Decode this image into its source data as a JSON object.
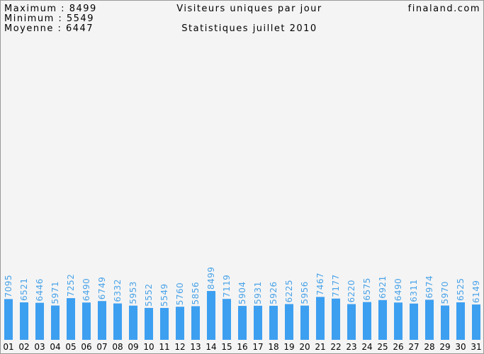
{
  "chart_data": {
    "type": "bar",
    "stats": [
      "Maximum : 8499",
      "Minimum : 5549",
      "Moyenne : 6447"
    ],
    "title": "Visiteurs uniques par jour",
    "subtitle": "Statistiques juillet 2010",
    "site": "finaland.com",
    "color": "#3d9ff0",
    "categories": [
      "01",
      "02",
      "03",
      "04",
      "05",
      "06",
      "07",
      "08",
      "09",
      "10",
      "11",
      "12",
      "13",
      "14",
      "15",
      "16",
      "17",
      "18",
      "19",
      "20",
      "21",
      "22",
      "23",
      "24",
      "25",
      "26",
      "27",
      "28",
      "29",
      "30",
      "31"
    ],
    "values": [
      7095,
      6521,
      6446,
      5971,
      7252,
      6490,
      6749,
      6332,
      5953,
      5552,
      5549,
      5760,
      5856,
      8499,
      7119,
      5904,
      5931,
      5926,
      6225,
      5956,
      7467,
      7177,
      6220,
      6575,
      6921,
      6490,
      6311,
      6974,
      5970,
      6525,
      6149
    ]
  }
}
